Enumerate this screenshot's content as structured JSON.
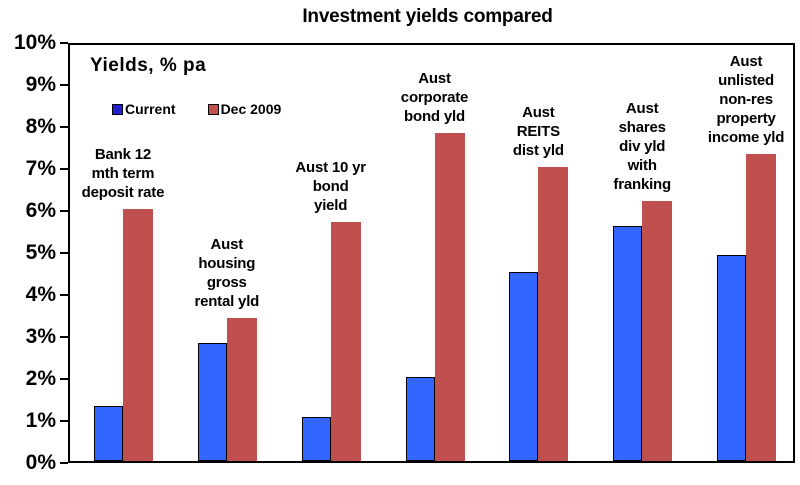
{
  "chart_data": {
    "type": "bar",
    "title": "Investment yields compared",
    "inner_label": "Yields, %  pa",
    "categories": [
      "Bank 12 mth term deposit rate",
      "Aust housing gross rental yld",
      "Aust 10 yr bond yield",
      "Aust corporate bond yld",
      "Aust REITS dist yld",
      "Aust shares div yld with franking",
      "Aust unlisted non-res property income yld"
    ],
    "category_label_lines": [
      [
        "Bank 12",
        "mth term",
        "deposit rate"
      ],
      [
        "Aust",
        "housing",
        "gross",
        "rental yld"
      ],
      [
        "Aust 10 yr",
        "bond",
        "yield"
      ],
      [
        "Aust",
        "corporate",
        "bond yld"
      ],
      [
        "Aust",
        "REITS",
        "dist yld"
      ],
      [
        "Aust",
        "shares",
        "div yld",
        "with",
        "franking"
      ],
      [
        "Aust",
        "unlisted",
        "non-res",
        "property",
        "income yld"
      ]
    ],
    "series": [
      {
        "name": "Current",
        "color": "#3366FF",
        "legend_color": "#2222CC",
        "values": [
          1.3,
          2.8,
          1.05,
          2.0,
          4.5,
          5.6,
          4.9
        ]
      },
      {
        "name": "Dec 2009",
        "color": "#C0504D",
        "legend_color": "#C0504D",
        "values": [
          6.0,
          3.4,
          5.7,
          7.8,
          7.0,
          6.2,
          7.3
        ]
      }
    ],
    "ylim": [
      0,
      10
    ],
    "ytick_step": 1,
    "ytick_suffix": "%",
    "grid": false,
    "legend_position": "top-left-inside",
    "axis_color": "#000000",
    "background": "#FFFFFF"
  }
}
